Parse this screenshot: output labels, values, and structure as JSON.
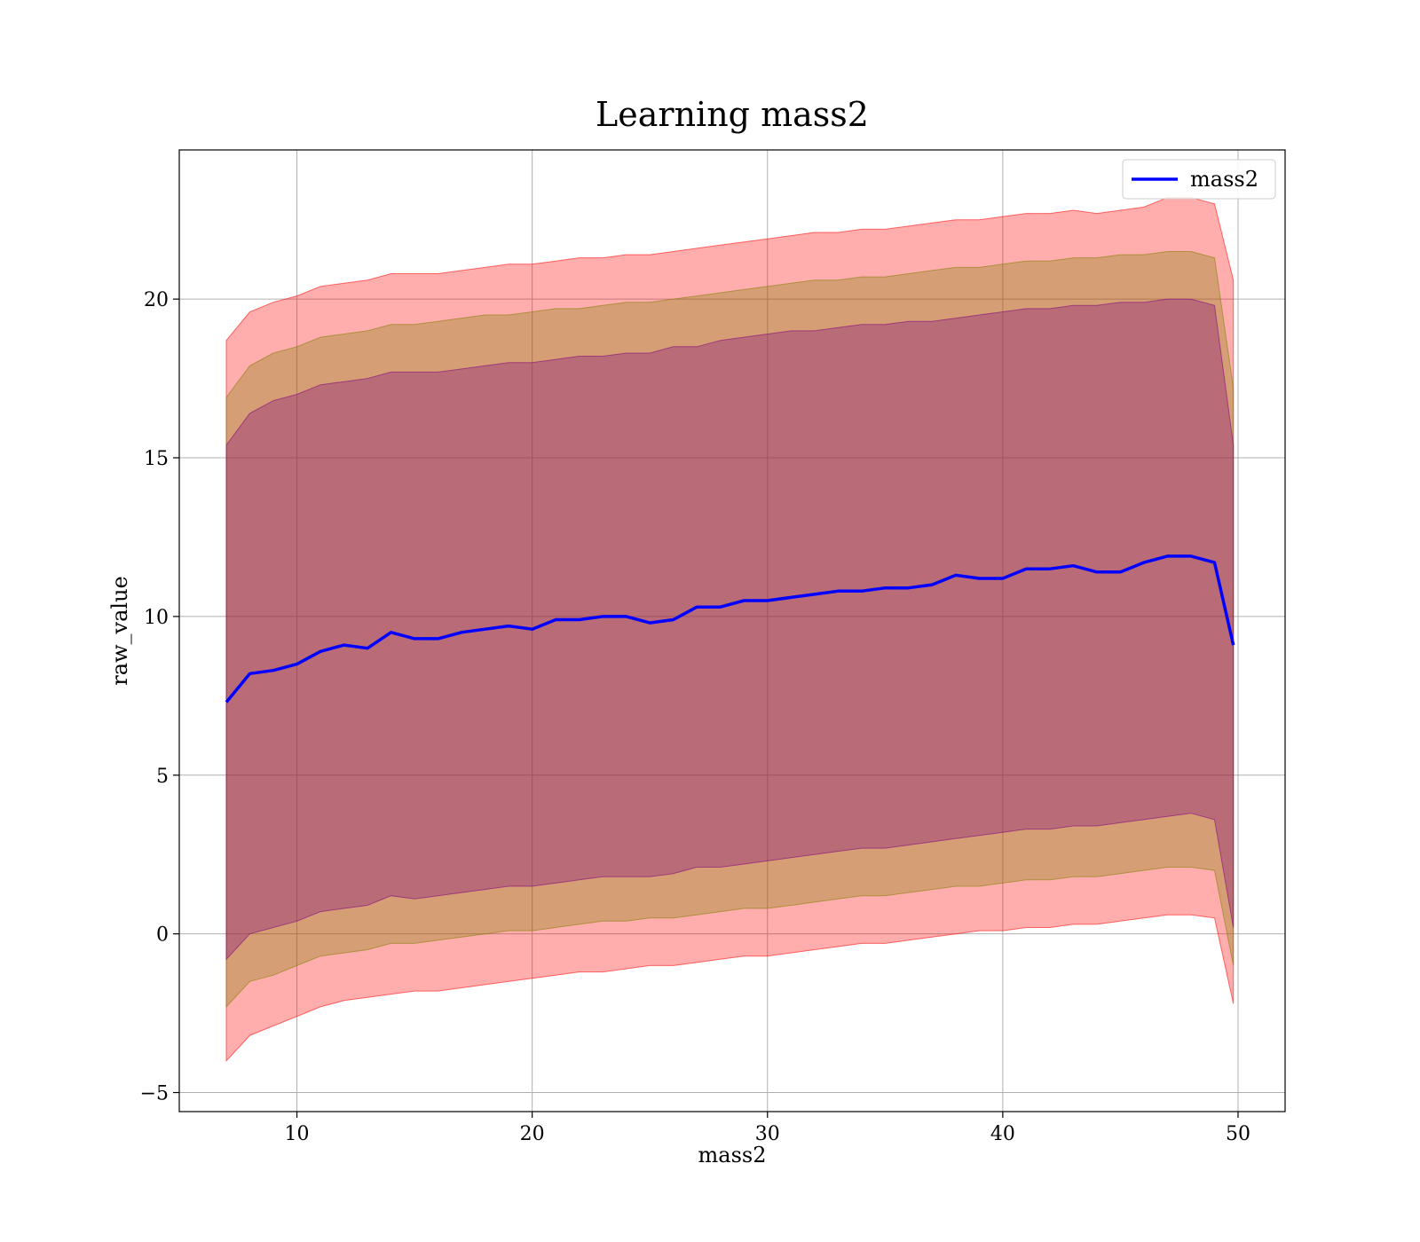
{
  "chart_data": {
    "type": "area",
    "title": "Learning mass2",
    "xlabel": "mass2",
    "ylabel": "raw_value",
    "xlim": [
      5,
      52
    ],
    "ylim": [
      -5.6,
      24.7
    ],
    "xticks": [
      10,
      20,
      30,
      40,
      50
    ],
    "yticks": [
      -5,
      0,
      5,
      10,
      15,
      20
    ],
    "grid": true,
    "legend": {
      "placement": "top-right",
      "entries": [
        "mass2"
      ]
    },
    "series": [
      {
        "name": "mass2",
        "role": "mean",
        "color": "#0000ff",
        "x": [
          7.0,
          8,
          9,
          10,
          11,
          12,
          13,
          14,
          15,
          16,
          17,
          18,
          19,
          20,
          21,
          22,
          23,
          24,
          25,
          26,
          27,
          28,
          29,
          30,
          31,
          32,
          33,
          34,
          35,
          36,
          37,
          38,
          39,
          40,
          41,
          42,
          43,
          44,
          45,
          46,
          47,
          48,
          49,
          49.8
        ],
        "y": [
          7.3,
          8.2,
          8.3,
          8.5,
          8.9,
          9.1,
          9.0,
          9.5,
          9.3,
          9.3,
          9.5,
          9.6,
          9.7,
          9.6,
          9.9,
          9.9,
          10.0,
          10.0,
          9.8,
          9.9,
          10.3,
          10.3,
          10.5,
          10.5,
          10.6,
          10.7,
          10.8,
          10.8,
          10.9,
          10.9,
          11.0,
          11.3,
          11.2,
          11.2,
          11.5,
          11.5,
          11.6,
          11.4,
          11.4,
          11.7,
          11.9,
          11.9,
          11.7,
          9.1
        ]
      }
    ],
    "bands": [
      {
        "sigma": 1,
        "color": "#800080",
        "upper": [
          15.4,
          16.4,
          16.8,
          17.0,
          17.3,
          17.4,
          17.5,
          17.7,
          17.7,
          17.7,
          17.8,
          17.9,
          18.0,
          18.0,
          18.1,
          18.2,
          18.2,
          18.3,
          18.3,
          18.5,
          18.5,
          18.7,
          18.8,
          18.9,
          19.0,
          19.0,
          19.1,
          19.2,
          19.2,
          19.3,
          19.3,
          19.4,
          19.5,
          19.6,
          19.7,
          19.7,
          19.8,
          19.8,
          19.9,
          19.9,
          20.0,
          20.0,
          19.8,
          15.4
        ],
        "lower": [
          -0.8,
          0.0,
          0.2,
          0.4,
          0.7,
          0.8,
          0.9,
          1.2,
          1.1,
          1.2,
          1.3,
          1.4,
          1.5,
          1.5,
          1.6,
          1.7,
          1.8,
          1.8,
          1.8,
          1.9,
          2.1,
          2.1,
          2.2,
          2.3,
          2.4,
          2.5,
          2.6,
          2.7,
          2.7,
          2.8,
          2.9,
          3.0,
          3.1,
          3.2,
          3.3,
          3.3,
          3.4,
          3.4,
          3.5,
          3.6,
          3.7,
          3.8,
          3.6,
          0.2
        ]
      },
      {
        "sigma": 2,
        "color": "#808000",
        "upper": [
          16.9,
          17.9,
          18.3,
          18.5,
          18.8,
          18.9,
          19.0,
          19.2,
          19.2,
          19.3,
          19.4,
          19.5,
          19.5,
          19.6,
          19.7,
          19.7,
          19.8,
          19.9,
          19.9,
          20.0,
          20.1,
          20.2,
          20.3,
          20.4,
          20.5,
          20.6,
          20.6,
          20.7,
          20.7,
          20.8,
          20.9,
          21.0,
          21.0,
          21.1,
          21.2,
          21.2,
          21.3,
          21.3,
          21.4,
          21.4,
          21.5,
          21.5,
          21.3,
          17.2
        ],
        "lower": [
          -2.3,
          -1.5,
          -1.3,
          -1.0,
          -0.7,
          -0.6,
          -0.5,
          -0.3,
          -0.3,
          -0.2,
          -0.1,
          0.0,
          0.1,
          0.1,
          0.2,
          0.3,
          0.4,
          0.4,
          0.5,
          0.5,
          0.6,
          0.7,
          0.8,
          0.8,
          0.9,
          1.0,
          1.1,
          1.2,
          1.2,
          1.3,
          1.4,
          1.5,
          1.5,
          1.6,
          1.7,
          1.7,
          1.8,
          1.8,
          1.9,
          2.0,
          2.1,
          2.1,
          2.0,
          -1.0
        ]
      },
      {
        "sigma": 3,
        "color": "#ff0000",
        "upper": [
          18.7,
          19.6,
          19.9,
          20.1,
          20.4,
          20.5,
          20.6,
          20.8,
          20.8,
          20.8,
          20.9,
          21.0,
          21.1,
          21.1,
          21.2,
          21.3,
          21.3,
          21.4,
          21.4,
          21.5,
          21.6,
          21.7,
          21.8,
          21.9,
          22.0,
          22.1,
          22.1,
          22.2,
          22.2,
          22.3,
          22.4,
          22.5,
          22.5,
          22.6,
          22.7,
          22.7,
          22.8,
          22.7,
          22.8,
          22.9,
          23.2,
          23.2,
          23.0,
          20.6
        ],
        "lower": [
          -4.0,
          -3.2,
          -2.9,
          -2.6,
          -2.3,
          -2.1,
          -2.0,
          -1.9,
          -1.8,
          -1.8,
          -1.7,
          -1.6,
          -1.5,
          -1.4,
          -1.3,
          -1.2,
          -1.2,
          -1.1,
          -1.0,
          -1.0,
          -0.9,
          -0.8,
          -0.7,
          -0.7,
          -0.6,
          -0.5,
          -0.4,
          -0.3,
          -0.3,
          -0.2,
          -0.1,
          0.0,
          0.1,
          0.1,
          0.2,
          0.2,
          0.3,
          0.3,
          0.4,
          0.5,
          0.6,
          0.6,
          0.5,
          -2.2
        ]
      }
    ]
  }
}
